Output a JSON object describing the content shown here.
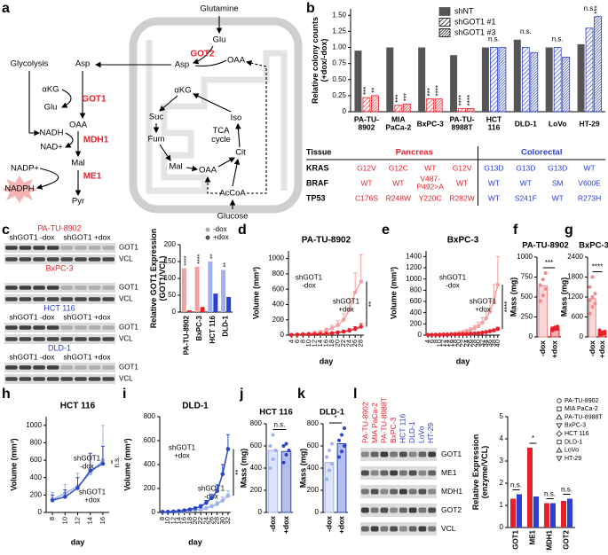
{
  "panel_a": {
    "letter": "a",
    "labels": [
      "Glutamine",
      "Glu",
      "Asp",
      "OAA",
      "Glycolysis",
      "Asp",
      "αKG",
      "Glu",
      "OAA",
      "NADH",
      "NAD+",
      "Mal",
      "NADP+",
      "NADPH",
      "Pyr",
      "αKG",
      "Suc",
      "Iso",
      "TCA\ncycle",
      "Fum",
      "Cit",
      "Mal",
      "OAA",
      "AcCoA",
      "Glucose"
    ],
    "enzymes": [
      "GOT2",
      "GOT1",
      "MDH1",
      "ME1"
    ],
    "enzyme_color": "#e8202a"
  },
  "panel_b": {
    "letter": "b",
    "ylabel": "Relative colony counts\n(+dox/-dox)",
    "categories": [
      "PA-TU-\n8902",
      "MIA\nPaCa-2",
      "BxPC-3",
      "PA-TU-\n8988T",
      "HCT\n116",
      "DLD-1",
      "LoVo",
      "HT-29"
    ],
    "category_colors": [
      "#e8202a",
      "#e8202a",
      "#e8202a",
      "#e8202a",
      "#2b3fd0",
      "#2b3fd0",
      "#2b3fd0",
      "#2b3fd0"
    ],
    "series": [
      {
        "name": "shNT",
        "color": "#555555",
        "values": [
          0.95,
          1.0,
          1.0,
          0.88,
          1.0,
          1.12,
          1.0,
          1.05
        ]
      },
      {
        "name": "shGOT1 #1",
        "color": "#000000",
        "values": [
          0.22,
          0.1,
          0.2,
          0.05,
          1.0,
          1.0,
          1.0,
          1.3
        ],
        "sig": [
          "***",
          "***",
          "***",
          "****",
          null,
          null,
          null,
          null
        ]
      },
      {
        "name": "shGOT1 #3",
        "color": "#000000",
        "values": [
          0.25,
          0.12,
          0.2,
          0.05,
          1.0,
          0.92,
          0.85,
          1.48
        ],
        "sig": [
          "**",
          "***",
          "****",
          "****",
          null,
          null,
          null,
          "***"
        ]
      }
    ],
    "group_sig": [
      null,
      null,
      null,
      null,
      "n.s.",
      "n.s.",
      "n.s.",
      "n.s."
    ],
    "ylim": [
      0,
      1.6
    ],
    "yticks": [
      0,
      0.25,
      {
        "value": 0.5,
        "label": "0.50"
      },
      0.75,
      {
        "value": 1,
        "label": "1.00"
      },
      1.25,
      {
        "value": 1.5,
        "label": "1.50"
      }
    ],
    "table": {
      "header": "Tissue",
      "groups": [
        "Pancreas",
        "Colorectal"
      ],
      "rows": [
        {
          "label": "KRAS",
          "values": [
            "G12V",
            "G12C",
            "WT",
            "G12V",
            "G13D",
            "G13D",
            "G13D",
            "WT"
          ]
        },
        {
          "label": "BRAF",
          "values": [
            "WT",
            "WT",
            "V487-\nP492>A",
            "WT",
            "WT",
            "WT",
            "SM",
            "V600E"
          ]
        },
        {
          "label": "TP53",
          "values": [
            "C176S",
            "R248W",
            "Y220C",
            "R282W",
            "WT",
            "S241F",
            "WT",
            "R273H"
          ]
        }
      ]
    }
  },
  "panel_c": {
    "letter": "c",
    "blots": [
      {
        "cell_line": "PA-TU-8902",
        "color": "#e8202a",
        "conditions": [
          "shGOT1 -dox",
          "shGOT1 +dox"
        ],
        "proteins": [
          "GOT1",
          "VCL"
        ]
      },
      {
        "cell_line": "BxPC-3",
        "color": "#e8202a",
        "proteins": [
          "GOT1",
          "VCL"
        ]
      },
      {
        "cell_line": "HCT 116",
        "color": "#2b3fd0",
        "conditions": [
          "shGOT1 -dox",
          "shGOT1 +dox"
        ],
        "proteins": [
          "GOT1",
          "VCL"
        ]
      },
      {
        "cell_line": "DLD-1",
        "color": "#2b3fd0",
        "conditions": [
          "shGOT1 -dox",
          "shGOT1 +dox"
        ],
        "proteins": [
          "GOT1",
          "VCL"
        ]
      }
    ],
    "chart": {
      "ylabel": "Relative GOT1 Expression\n(GOT1/VCL)",
      "categories": [
        "PA-TU-8902",
        "BxPC-3",
        "HCT 116",
        "DLD-1"
      ],
      "series": [
        {
          "name": "-dox",
          "legend_color": "#aaaaaa",
          "colors": [
            "#f4a0a0",
            "#f4a0a0",
            "#9fb0ee",
            "#9fb0ee"
          ],
          "values": [
            130,
            135,
            150,
            125
          ]
        },
        {
          "name": "+dox",
          "legend_color": "#555555",
          "colors": [
            "#e8202a",
            "#e8202a",
            "#2b3fd0",
            "#2b3fd0"
          ],
          "values": [
            5,
            15,
            55,
            45
          ]
        }
      ],
      "sig": [
        "****",
        "****",
        "**",
        "**"
      ],
      "ylim": [
        0,
        200
      ],
      "yticks": [
        0,
        50,
        100,
        150,
        200
      ]
    }
  },
  "panel_d": {
    "letter": "d",
    "title": "PA-TU-8902",
    "xlabel": "day",
    "ylabel": "Volume (mm³)",
    "x": [
      4,
      6,
      8,
      10,
      12,
      14,
      16,
      18,
      20,
      22,
      24,
      26,
      28
    ],
    "xlim": [
      3,
      29
    ],
    "xticks": [
      4,
      6,
      8,
      10,
      12,
      14,
      16,
      18,
      20,
      22,
      24,
      26,
      28
    ],
    "ylim": [
      0,
      1100
    ],
    "yticks": [
      0,
      200,
      400,
      600,
      800,
      1000
    ],
    "sig": "**",
    "series": [
      {
        "name": "shGOT1\n-dox",
        "color": "#f4a0a0",
        "values": [
          5,
          10,
          15,
          20,
          30,
          40,
          60,
          90,
          130,
          200,
          330,
          560,
          700
        ],
        "errors": [
          3,
          5,
          8,
          10,
          15,
          20,
          30,
          40,
          60,
          80,
          150,
          250,
          350
        ]
      },
      {
        "name": "shGOT1\n+dox",
        "color": "#e8202a",
        "values": [
          3,
          5,
          8,
          10,
          12,
          15,
          20,
          25,
          35,
          45,
          60,
          80,
          110
        ],
        "errors": [
          2,
          3,
          4,
          5,
          6,
          8,
          10,
          12,
          15,
          20,
          25,
          30,
          40
        ]
      }
    ]
  },
  "panel_e": {
    "letter": "e",
    "title": "BxPC-3",
    "xlabel": "day",
    "ylabel": "Volume (mm³)",
    "x": [
      4,
      6,
      8,
      10,
      12,
      14,
      16,
      18,
      20,
      22,
      24,
      26,
      28,
      30,
      32,
      34,
      36,
      38,
      40
    ],
    "xlim": [
      3,
      41
    ],
    "xticks": [
      4,
      6,
      8,
      10,
      12,
      14,
      16,
      18,
      20,
      22,
      24,
      26,
      28,
      30,
      32,
      34,
      36,
      38,
      40
    ],
    "ylim": [
      0,
      1500
    ],
    "yticks": [
      0,
      200,
      400,
      600,
      800,
      1000,
      1200,
      1400
    ],
    "sig": "****",
    "series": [
      {
        "name": "shGOT1\n-dox",
        "color": "#f4a0a0",
        "values": [
          5,
          8,
          10,
          12,
          15,
          20,
          25,
          30,
          40,
          55,
          70,
          90,
          120,
          160,
          220,
          300,
          420,
          600,
          900
        ],
        "errors": [
          3,
          4,
          5,
          6,
          8,
          10,
          12,
          15,
          20,
          25,
          30,
          40,
          50,
          70,
          90,
          120,
          180,
          300,
          500
        ]
      },
      {
        "name": "shGOT1\n+dox",
        "color": "#e8202a",
        "values": [
          3,
          4,
          5,
          6,
          7,
          8,
          10,
          12,
          15,
          18,
          20,
          25,
          30,
          35,
          45,
          55,
          70,
          85,
          110
        ],
        "errors": [
          1,
          1,
          2,
          2,
          2,
          3,
          3,
          4,
          5,
          6,
          6,
          8,
          9,
          10,
          14,
          16,
          20,
          25,
          30
        ]
      }
    ]
  },
  "panel_f": {
    "letter": "f",
    "title": "PA-TU-8902",
    "ylabel": "Mass (mg)",
    "categories": [
      "-dox",
      "+dox"
    ],
    "colors": [
      "#f08a8a",
      "#e8202a"
    ],
    "values": [
      640,
      110
    ],
    "points": [
      [
        450,
        520,
        600,
        650,
        720,
        800
      ],
      [
        80,
        95,
        100,
        110,
        120,
        130
      ]
    ],
    "ylim": [
      0,
      1000
    ],
    "yticks": [
      0,
      250,
      500,
      750,
      1000
    ],
    "sig": "***"
  },
  "panel_g": {
    "letter": "g",
    "title": "BxPC-3",
    "ylabel": "Mass (mg)",
    "categories": [
      "-dox",
      "+dox"
    ],
    "colors": [
      "#f08a8a",
      "#e8202a"
    ],
    "values": [
      1150,
      130
    ],
    "points": [
      [
        700,
        900,
        1000,
        1100,
        1200,
        1300,
        1500,
        1800
      ],
      [
        60,
        80,
        100,
        120,
        140,
        160,
        200
      ]
    ],
    "ylim": [
      0,
      2400
    ],
    "yticks": [
      0,
      600,
      1200,
      1800,
      2400
    ],
    "sig": "****"
  },
  "panel_h": {
    "letter": "h",
    "title": "HCT 116",
    "xlabel": "day",
    "ylabel": "Volume (mm³)",
    "x": [
      8,
      10,
      12,
      14,
      16
    ],
    "xlim": [
      7,
      17
    ],
    "xticks": [
      8,
      10,
      12,
      14,
      16
    ],
    "ylim": [
      0,
      1100
    ],
    "yticks": [
      0,
      200,
      400,
      600,
      800,
      1000
    ],
    "sig": "n.s.",
    "series": [
      {
        "name": "shGOT1\n-dox",
        "color": "#9fb0ee",
        "values": [
          150,
          220,
          300,
          450,
          600
        ],
        "errors": [
          80,
          100,
          150,
          200,
          400
        ]
      },
      {
        "name": "shGOT1\n+dox",
        "color": "#2b47c8",
        "values": [
          140,
          180,
          280,
          480,
          560
        ],
        "errors": [
          60,
          80,
          120,
          200,
          200
        ]
      }
    ]
  },
  "panel_i": {
    "letter": "i",
    "title": "DLD-1",
    "xlabel": "day",
    "ylabel": "Volume (mm³)",
    "x": [
      8,
      10,
      12,
      14,
      16,
      18,
      20,
      22,
      24,
      26,
      28,
      30,
      32
    ],
    "xlim": [
      7,
      33
    ],
    "xticks": [
      8,
      10,
      12,
      14,
      16,
      18,
      20,
      22,
      24,
      26,
      28,
      30,
      32
    ],
    "ylim": [
      0,
      800
    ],
    "yticks": [
      0,
      200,
      400,
      600,
      800
    ],
    "sig": "**",
    "series": [
      {
        "name": "shGOT1\n-dox",
        "color": "#9fb0ee",
        "values": [
          5,
          5,
          6,
          8,
          12,
          15,
          20,
          25,
          35,
          50,
          70,
          100,
          140
        ],
        "errors": [
          2,
          2,
          2,
          3,
          4,
          5,
          6,
          8,
          10,
          15,
          20,
          30,
          40
        ]
      },
      {
        "name": "shGOT1\n+dox",
        "color": "#2b47c8",
        "values": [
          5,
          5,
          8,
          12,
          18,
          25,
          35,
          50,
          80,
          120,
          180,
          320,
          530
        ],
        "errors": [
          2,
          2,
          3,
          5,
          6,
          8,
          10,
          15,
          20,
          30,
          50,
          80,
          120
        ]
      }
    ]
  },
  "panel_j": {
    "letter": "j",
    "title": "HCT 116",
    "ylabel": "Mass (mg)",
    "categories": [
      "-dox",
      "+dox"
    ],
    "colors": [
      "#9fb0ee",
      "#2b47c8"
    ],
    "values": [
      560,
      550
    ],
    "points": [
      [
        400,
        480,
        560,
        600,
        700
      ],
      [
        450,
        520,
        560,
        600,
        620
      ]
    ],
    "ylim": [
      0,
      800
    ],
    "yticks": [
      0,
      200,
      400,
      600,
      800
    ],
    "sig": "n.s."
  },
  "panel_k": {
    "letter": "k",
    "title": "DLD-1",
    "ylabel": "Mass (mg)",
    "categories": [
      "-dox",
      "+dox"
    ],
    "colors": [
      "#9fb0ee",
      "#2b47c8"
    ],
    "values": [
      450,
      620
    ],
    "points": [
      [
        300,
        380,
        440,
        500,
        560,
        620
      ],
      [
        500,
        550,
        600,
        650,
        700,
        760
      ]
    ],
    "ylim": [
      0,
      800
    ],
    "yticks": [
      0,
      200,
      400,
      600,
      800
    ],
    "sig": "*"
  },
  "panel_l": {
    "letter": "l",
    "blot": {
      "cell_lines": [
        "PA-TU-8902",
        "MIA PaCa-2",
        "PA-TU-8988T",
        "BxPC-3",
        "HCT 116",
        "DLD-1",
        "LoVo",
        "HT-29"
      ],
      "cell_line_colors": [
        "#e8202a",
        "#e8202a",
        "#e8202a",
        "#e8202a",
        "#2b3fd0",
        "#2b3fd0",
        "#2b3fd0",
        "#2b3fd0"
      ],
      "proteins": [
        "GOT1",
        "ME1",
        "MDH1",
        "GOT2",
        "VCL"
      ]
    },
    "chart": {
      "ylabel": "Relative Expression\n(enzyme/VCL)",
      "categories": [
        "GOT1",
        "ME1",
        "MDH1",
        "GOT2"
      ],
      "series": [
        {
          "color": "#e8202a",
          "values": [
            1.3,
            3.6,
            1.1,
            1.2
          ]
        },
        {
          "color": "#2b3fd0",
          "values": [
            1.5,
            1.4,
            1.1,
            1.3
          ]
        }
      ],
      "sig": [
        "n.s.",
        "*",
        "n.s.",
        "n.s."
      ],
      "ylim": [
        0,
        5
      ],
      "yticks": [
        0,
        1,
        2,
        3,
        4,
        5
      ],
      "legend": [
        "PA-TU-8902",
        "MIA PaCa-2",
        "PA-TU-8988T",
        "BxPC-3",
        "HCT 116",
        "DLD-1",
        "LoVo",
        "HT-29"
      ]
    }
  }
}
